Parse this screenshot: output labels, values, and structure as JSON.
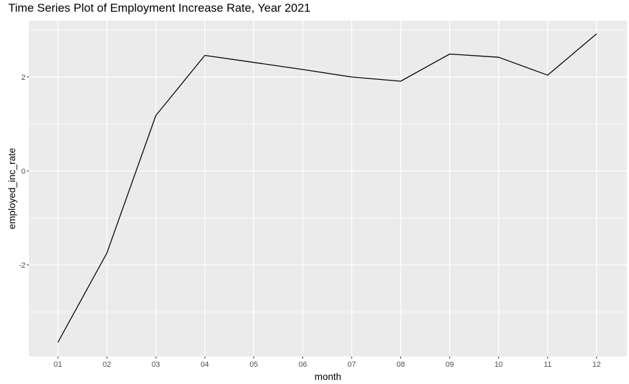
{
  "chart_data": {
    "type": "line",
    "title": "Time Series Plot of Employment Increase Rate, Year 2021",
    "xlabel": "month",
    "ylabel": "employed_inc_rate",
    "categories": [
      "01",
      "02",
      "03",
      "04",
      "05",
      "06",
      "07",
      "08",
      "09",
      "10",
      "11",
      "12"
    ],
    "series": [
      {
        "values": [
          -3.65,
          -1.75,
          1.18,
          2.46,
          2.31,
          2.16,
          2.0,
          1.91,
          2.49,
          2.42,
          2.04,
          2.92
        ]
      }
    ],
    "yticks": [
      -2,
      0,
      2
    ],
    "ytick_labels": [
      "-2",
      "0",
      "2"
    ],
    "ylim": [
      -3.95,
      3.2
    ],
    "grid": true,
    "legend": "none",
    "colors": {
      "panel": "#ebebeb",
      "grid_major": "#ffffff",
      "line": "#000000",
      "tick_text": "#4d4d4d"
    }
  }
}
